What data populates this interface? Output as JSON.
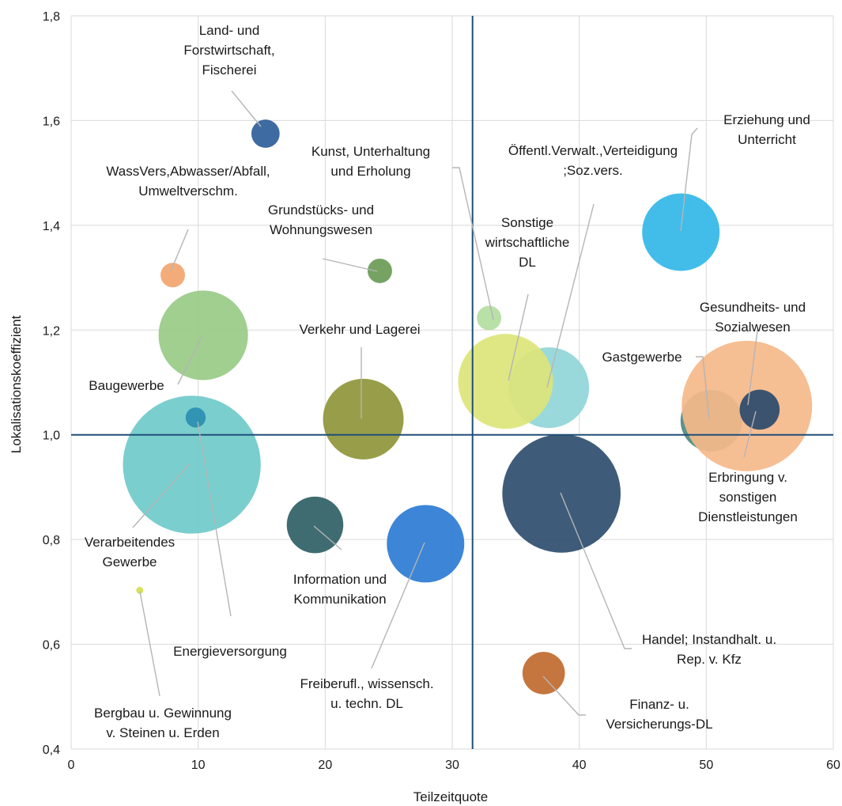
{
  "chart_data": {
    "type": "bubble",
    "xlabel": "Teilzeitquote",
    "ylabel": "Lokalisationskoeffizient",
    "xlim": [
      0,
      60
    ],
    "ylim": [
      0.4,
      1.8
    ],
    "xticks": [
      "0",
      "10",
      "20",
      "30",
      "40",
      "50",
      "60"
    ],
    "yticks": [
      "0,4",
      "0,6",
      "0,8",
      "1,0",
      "1,2",
      "1,4",
      "1,6",
      "1,8"
    ],
    "reference_lines": {
      "x": 31.6,
      "y": 1.0
    },
    "grid": true,
    "points": [
      {
        "label": [
          "Land- und",
          "Forstwirtschaft,",
          "Fischerei"
        ],
        "x": 15.3,
        "y": 1.575,
        "size": 0.8,
        "color": "#2e5e99"
      },
      {
        "label": [
          "WassVers,Abwasser/Abfall,",
          "Umweltverschm."
        ],
        "x": 8.0,
        "y": 1.305,
        "size": 0.6,
        "color": "#f2a56e"
      },
      {
        "label": [
          "Grundstücks- und",
          "Wohnungswesen"
        ],
        "x": 24.3,
        "y": 1.313,
        "size": 0.6,
        "color": "#6a9b55"
      },
      {
        "label": [
          "Baugewerbe"
        ],
        "x": 10.4,
        "y": 1.19,
        "size": 8.0,
        "color": "#98cb85"
      },
      {
        "label": [
          "Kunst, Unterhaltung",
          "und Erholung"
        ],
        "x": 32.9,
        "y": 1.223,
        "size": 0.6,
        "color": "#b3dd9f"
      },
      {
        "label": [
          "Öffentl.Verwalt.,Verteidigung",
          ";Soz.vers."
        ],
        "x": 37.6,
        "y": 1.09,
        "size": 6.5,
        "color": "#91d6d8"
      },
      {
        "label": [
          "Erziehung und",
          "Unterricht"
        ],
        "x": 48.0,
        "y": 1.387,
        "size": 6.0,
        "color": "#32b7e8"
      },
      {
        "label": [
          "Sonstige",
          "wirtschaftliche",
          "DL"
        ],
        "x": 34.2,
        "y": 1.102,
        "size": 9.0,
        "color": "#dce57a"
      },
      {
        "label": [
          "Verkehr und Lagerei"
        ],
        "x": 23.0,
        "y": 1.03,
        "size": 6.5,
        "color": "#8f9539"
      },
      {
        "label": [
          "Gastgewerbe"
        ],
        "x": 50.4,
        "y": 1.027,
        "size": 3.8,
        "color": "#4e8a82"
      },
      {
        "label": [
          "Gesundheits- und",
          "Sozialwesen"
        ],
        "x": 53.2,
        "y": 1.055,
        "size": 17.0,
        "color": "#f5b88a"
      },
      {
        "label": [
          "Erbringung v.",
          "sonstigen",
          "Dienstleistungen"
        ],
        "x": 54.2,
        "y": 1.048,
        "size": 1.6,
        "color": "#2a4a6b"
      },
      {
        "label": [
          "Verarbeitendes",
          "Gewerbe"
        ],
        "x": 9.5,
        "y": 0.943,
        "size": 19.0,
        "color": "#6fcaca"
      },
      {
        "label": [
          "Energieversorgung"
        ],
        "x": 9.8,
        "y": 1.033,
        "size": 0.4,
        "color": "#2a8fb0"
      },
      {
        "label": [
          "Information und",
          "Kommunikation"
        ],
        "x": 19.2,
        "y": 0.828,
        "size": 3.2,
        "color": "#2f5f65"
      },
      {
        "label": [
          "Freiberufl., wissensch.",
          "u. techn. DL"
        ],
        "x": 27.9,
        "y": 0.792,
        "size": 6.0,
        "color": "#2c7bd2"
      },
      {
        "label": [
          "Handel; Instandhalt. u.",
          "Rep. v. Kfz"
        ],
        "x": 38.6,
        "y": 0.888,
        "size": 14.0,
        "color": "#2e4e6e"
      },
      {
        "label": [
          "Bergbau u. Gewinnung",
          "v. Steinen u. Erden"
        ],
        "x": 5.4,
        "y": 0.703,
        "size": 0.05,
        "color": "#d3e04f"
      },
      {
        "label": [
          "Finanz- u.",
          "Versicherungs-DL"
        ],
        "x": 37.2,
        "y": 0.545,
        "size": 1.8,
        "color": "#c06a2e"
      }
    ]
  }
}
